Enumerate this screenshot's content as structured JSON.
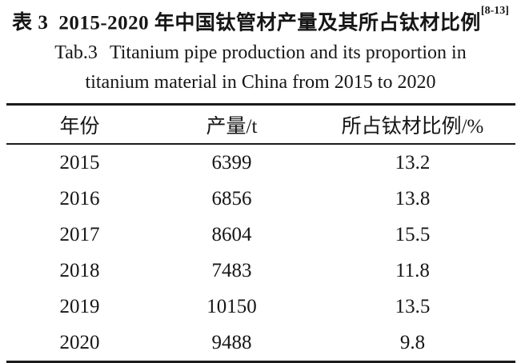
{
  "caption": {
    "zh_label": "表 3",
    "zh_title": "2015-2020 年中国钛管材产量及其所占钛材比例",
    "reference": "[8-13]",
    "en_label": "Tab.3",
    "en_title_line1": "Titanium pipe production and its proportion in",
    "en_title_line2": "titanium material in China from 2015 to 2020"
  },
  "table": {
    "headers": [
      "年份",
      "产量/t",
      "所占钛材比例/%"
    ],
    "rows": [
      [
        "2015",
        "6399",
        "13.2"
      ],
      [
        "2016",
        "6856",
        "13.8"
      ],
      [
        "2017",
        "8604",
        "15.5"
      ],
      [
        "2018",
        "7483",
        "11.8"
      ],
      [
        "2019",
        "10150",
        "13.5"
      ],
      [
        "2020",
        "9488",
        "9.8"
      ]
    ]
  },
  "chart_data": {
    "type": "table",
    "title_zh": "表 3 2015-2020 年中国钛管材产量及其所占钛材比例 [8-13]",
    "title_en": "Tab.3 Titanium pipe production and its proportion in titanium material in China from 2015 to 2020",
    "columns": [
      "年份",
      "产量/t",
      "所占钛材比例/%"
    ],
    "years": [
      2015,
      2016,
      2017,
      2018,
      2019,
      2020
    ],
    "production_t": [
      6399,
      6856,
      8604,
      7483,
      10150,
      9488
    ],
    "proportion_pct": [
      13.2,
      13.8,
      15.5,
      11.8,
      13.5,
      9.8
    ]
  },
  "colors": {
    "background": "#ffffff",
    "text": "#161616",
    "rule": "#1b1b1b"
  }
}
